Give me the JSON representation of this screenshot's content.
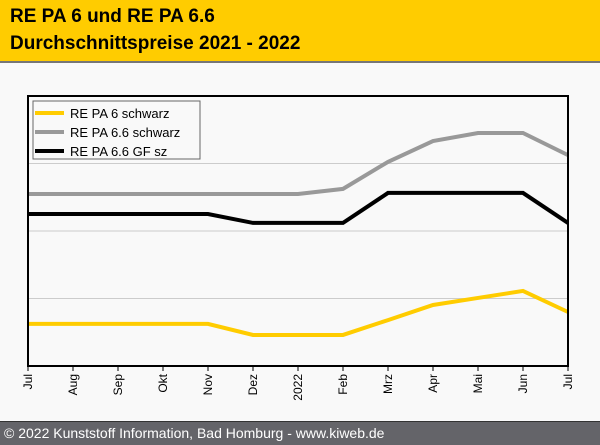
{
  "header": {
    "title_line1": "RE PA 6 und RE PA 6.6",
    "title_line2": "Durchschnittspreise 2021 - 2022"
  },
  "footer": {
    "text": "© 2022 Kunststoff Information, Bad Homburg - www.kiweb.de"
  },
  "chart_data": {
    "type": "line",
    "title": "RE PA 6 und RE PA 6.6 Durchschnittspreise 2021 - 2022",
    "xlabel": "",
    "ylabel": "",
    "y_unit_note": "no y-axis tick labels shown; values are relative index (0 = axis bottom, 100 = axis top)",
    "ylim": [
      0,
      100
    ],
    "yticks_gridlines": [
      25,
      50,
      75
    ],
    "grid": true,
    "legend_position": "top-left",
    "categories": [
      "Jul",
      "Aug",
      "Sep",
      "Okt",
      "Nov",
      "Dez",
      "2022",
      "Feb",
      "Mrz",
      "Apr",
      "Mai",
      "Jun",
      "Jul"
    ],
    "series": [
      {
        "name": "RE PA 6 schwarz",
        "color": "#ffcc00",
        "values": [
          15.6,
          15.6,
          15.6,
          15.6,
          15.6,
          11.5,
          11.5,
          11.5,
          17.0,
          22.6,
          25.2,
          27.8,
          20.0
        ]
      },
      {
        "name": "RE PA 6.6 schwarz",
        "color": "#999999",
        "values": [
          63.7,
          63.7,
          63.7,
          63.7,
          63.7,
          63.7,
          63.7,
          65.6,
          75.6,
          83.3,
          86.3,
          86.3,
          78.1
        ]
      },
      {
        "name": "RE PA 6.6 GF sz",
        "color": "#000000",
        "values": [
          56.3,
          56.3,
          56.3,
          56.3,
          56.3,
          53.0,
          53.0,
          53.0,
          64.1,
          64.1,
          64.1,
          64.1,
          53.0
        ]
      }
    ]
  }
}
